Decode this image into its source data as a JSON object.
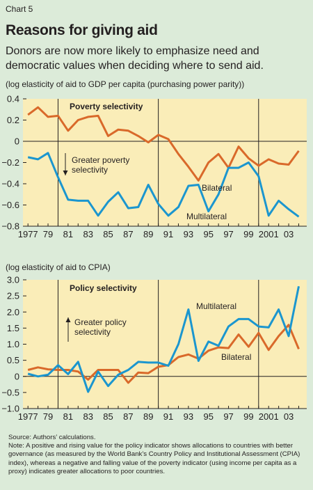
{
  "header": {
    "chart_number": "Chart 5",
    "title": "Reasons for giving aid",
    "subtitle": "Donors are now more likely to emphasize need and democratic values when deciding where to send aid."
  },
  "footer": {
    "source": "Source: Authors’ calculations.",
    "note": "Note: A positive and rising value for the policy indicator shows allocations to countries with better governance (as measured by the World Bank’s Country Policy and Institutional Assessment (CPIA) index), whereas a negative and falling value of the poverty indicator (using income per capita as a proxy) indicates greater allocations to poor countries."
  },
  "colors": {
    "background": "#dcebd9",
    "plot_background": "#faedb8",
    "bilateral": "#d9692a",
    "multilateral": "#1b96cf",
    "axis": "#231f20"
  },
  "chart_data": [
    {
      "type": "line",
      "title": "Poverty selectivity",
      "ylabel": "(log elasticity of aid to GDP per capita (purchasing power parity))",
      "xlabel": "",
      "x": [
        1977,
        1978,
        1979,
        1980,
        1981,
        1982,
        1983,
        1984,
        1985,
        1986,
        1987,
        1988,
        1989,
        1990,
        1991,
        1992,
        1993,
        1994,
        1995,
        1996,
        1997,
        1998,
        1999,
        2000,
        2001,
        2002,
        2003,
        2004
      ],
      "x_tick_labels": [
        "1977",
        "79",
        "81",
        "83",
        "85",
        "87",
        "89",
        "91",
        "93",
        "95",
        "97",
        "99",
        "2001",
        "03"
      ],
      "x_tick_values": [
        1977,
        1979,
        1981,
        1983,
        1985,
        1987,
        1989,
        1991,
        1993,
        1995,
        1997,
        1999,
        2001,
        2003
      ],
      "ylim": [
        -0.8,
        0.4
      ],
      "y_tick_labels": [
        "0.4",
        "0.2",
        "0",
        "−0.2",
        "−0.4",
        "−0.6",
        "−0.8"
      ],
      "y_tick_values": [
        0.4,
        0.2,
        0,
        -0.2,
        -0.4,
        -0.6,
        -0.8
      ],
      "grid": "horizontal line at 0 only",
      "vertical_markers": [
        1980,
        1990,
        2000
      ],
      "series": [
        {
          "name": "Bilateral",
          "color": "#d9692a",
          "values": [
            0.25,
            0.32,
            0.23,
            0.24,
            0.1,
            0.2,
            0.23,
            0.24,
            0.05,
            0.11,
            0.1,
            0.05,
            -0.01,
            0.06,
            0.02,
            -0.12,
            -0.24,
            -0.37,
            -0.2,
            -0.12,
            -0.25,
            -0.05,
            -0.16,
            -0.23,
            -0.17,
            -0.21,
            -0.22,
            -0.09
          ]
        },
        {
          "name": "Multilateral",
          "color": "#1b96cf",
          "values": [
            -0.15,
            -0.17,
            -0.11,
            -0.34,
            -0.55,
            -0.56,
            -0.56,
            -0.7,
            -0.57,
            -0.48,
            -0.63,
            -0.62,
            -0.41,
            -0.59,
            -0.7,
            -0.62,
            -0.42,
            -0.41,
            -0.66,
            -0.5,
            -0.25,
            -0.25,
            -0.2,
            -0.33,
            -0.7,
            -0.56,
            -0.64,
            -0.71
          ]
        }
      ],
      "labels": {
        "bilateral": "Bilateral",
        "multilateral": "Multilateral"
      },
      "annotation": "Greater poverty selectivity",
      "annotation_lines": [
        "Greater poverty",
        "selectivity"
      ],
      "annotation_arrow": "down"
    },
    {
      "type": "line",
      "title": "Policy selectivity",
      "ylabel": "(log elasticity of aid to CPIA)",
      "xlabel": "",
      "x": [
        1977,
        1978,
        1979,
        1980,
        1981,
        1982,
        1983,
        1984,
        1985,
        1986,
        1987,
        1988,
        1989,
        1990,
        1991,
        1992,
        1993,
        1994,
        1995,
        1996,
        1997,
        1998,
        1999,
        2000,
        2001,
        2002,
        2003,
        2004
      ],
      "x_tick_labels": [
        "1977",
        "79",
        "81",
        "83",
        "85",
        "87",
        "89",
        "91",
        "93",
        "95",
        "97",
        "99",
        "2001",
        "03"
      ],
      "x_tick_values": [
        1977,
        1979,
        1981,
        1983,
        1985,
        1987,
        1989,
        1991,
        1993,
        1995,
        1997,
        1999,
        2001,
        2003
      ],
      "ylim": [
        -1.0,
        3.0
      ],
      "y_tick_labels": [
        "3.0",
        "2.5",
        "2.0",
        "1.5",
        "1.0",
        "0.5",
        "0",
        "−0.5",
        "−1.0"
      ],
      "y_tick_values": [
        3.0,
        2.5,
        2.0,
        1.5,
        1.0,
        0.5,
        0,
        -0.5,
        -1.0
      ],
      "grid": "horizontal line at 0 only",
      "vertical_markers": [
        1980,
        1990,
        2000
      ],
      "series": [
        {
          "name": "Bilateral",
          "color": "#d9692a",
          "values": [
            0.2,
            0.28,
            0.22,
            0.2,
            0.2,
            0.15,
            -0.1,
            0.2,
            0.2,
            0.2,
            -0.2,
            0.12,
            0.1,
            0.3,
            0.35,
            0.6,
            0.68,
            0.55,
            0.8,
            0.9,
            0.88,
            1.3,
            0.92,
            1.35,
            0.82,
            1.25,
            1.6,
            0.85
          ]
        },
        {
          "name": "Multilateral",
          "color": "#1b96cf",
          "values": [
            0.08,
            0.0,
            0.05,
            0.35,
            0.07,
            0.45,
            -0.48,
            0.15,
            -0.3,
            0.05,
            0.2,
            0.45,
            0.43,
            0.43,
            0.33,
            1.0,
            2.08,
            0.48,
            1.08,
            0.95,
            1.55,
            1.78,
            1.78,
            1.55,
            1.52,
            2.08,
            1.25,
            2.8
          ]
        }
      ],
      "labels": {
        "bilateral": "Bilateral",
        "multilateral": "Multilateral"
      },
      "annotation": "Greater policy selectivity",
      "annotation_lines": [
        "Greater policy",
        "selectivity"
      ],
      "annotation_arrow": "up"
    }
  ]
}
